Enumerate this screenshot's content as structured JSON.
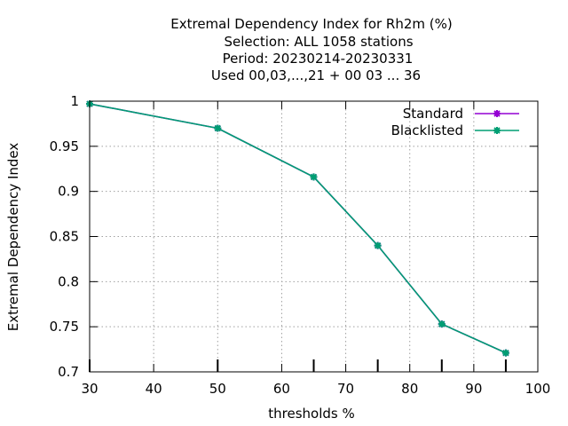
{
  "chart_data": {
    "type": "line",
    "title_lines": [
      "Extremal Dependency Index  for Rh2m (%)",
      "Selection: ALL   1058 stations",
      "Period: 20230214-20230331",
      "Used  00,03,...,21  + 00 03 ... 36"
    ],
    "xlabel": "thresholds %",
    "ylabel": "Extremal Dependency Index",
    "xlim": [
      30,
      100
    ],
    "ylim": [
      0.7,
      1.0
    ],
    "xticks": [
      30,
      40,
      50,
      60,
      70,
      80,
      90,
      100
    ],
    "xtick_labels": [
      "30",
      "40",
      "50",
      "60",
      "70",
      "80",
      "90",
      "100"
    ],
    "yticks": [
      0.7,
      0.75,
      0.8,
      0.85,
      0.9,
      0.95,
      1.0
    ],
    "ytick_labels": [
      "0.7",
      "0.75",
      "0.8",
      "0.85",
      "0.9",
      "0.95",
      "1"
    ],
    "grid": true,
    "legend_position": "top-right",
    "series": [
      {
        "name": "Standard",
        "color": "#9400d3",
        "x": [
          30,
          50,
          65,
          75,
          85,
          95
        ],
        "y": [
          0.997,
          0.97,
          0.916,
          0.84,
          0.753,
          0.721
        ]
      },
      {
        "name": "Blacklisted",
        "color": "#009e73",
        "x": [
          30,
          50,
          65,
          75,
          85,
          95
        ],
        "y": [
          0.997,
          0.97,
          0.916,
          0.84,
          0.753,
          0.721
        ]
      }
    ]
  }
}
